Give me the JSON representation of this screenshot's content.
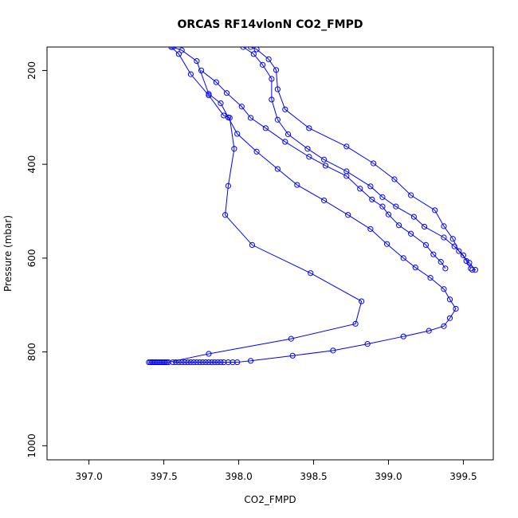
{
  "chart_data": {
    "type": "scatter",
    "title": "ORCAS RF14vlonN CO2_FMPD",
    "xlabel": "CO2_FMPD",
    "ylabel": "Pressure (mbar)",
    "xlim": [
      396.72,
      399.7
    ],
    "ylim": [
      1030,
      150
    ],
    "y_reversed": true,
    "x_ticks": [
      397.0,
      397.5,
      398.0,
      398.5,
      399.0,
      399.5
    ],
    "x_tick_labels": [
      "397.0",
      "397.5",
      "398.0",
      "398.5",
      "399.0",
      "399.5"
    ],
    "y_ticks": [
      200,
      400,
      600,
      800,
      1000
    ],
    "y_tick_labels": [
      "200",
      "400",
      "600",
      "800",
      "1000"
    ],
    "grid": false,
    "legend": "none",
    "marker": "open-circle",
    "connected": true,
    "color": "#0000ff",
    "series": [
      {
        "values": [
          [
            397.4,
            822
          ],
          [
            397.41,
            822
          ],
          [
            397.42,
            822
          ],
          [
            397.43,
            822
          ],
          [
            397.44,
            822
          ],
          [
            397.45,
            822
          ],
          [
            397.46,
            822
          ],
          [
            397.47,
            822
          ],
          [
            397.48,
            822
          ],
          [
            397.49,
            822
          ],
          [
            397.5,
            822
          ],
          [
            397.51,
            822
          ],
          [
            397.52,
            822
          ],
          [
            397.53,
            822
          ],
          [
            397.8,
            804
          ],
          [
            398.35,
            772
          ],
          [
            398.78,
            740
          ],
          [
            398.82,
            692
          ],
          [
            398.48,
            632
          ],
          [
            398.09,
            572
          ],
          [
            397.91,
            508
          ],
          [
            397.93,
            446
          ],
          [
            397.97,
            367
          ],
          [
            397.94,
            301
          ],
          [
            397.9,
            296
          ],
          [
            397.8,
            253
          ],
          [
            397.68,
            208
          ],
          [
            397.6,
            165
          ],
          [
            397.55,
            150
          ]
        ]
      },
      {
        "values": [
          [
            397.56,
            822
          ],
          [
            397.58,
            822
          ],
          [
            397.6,
            822
          ],
          [
            397.62,
            822
          ],
          [
            397.64,
            822
          ],
          [
            397.66,
            822
          ],
          [
            397.68,
            822
          ],
          [
            397.7,
            822
          ],
          [
            397.72,
            822
          ],
          [
            397.74,
            822
          ],
          [
            397.76,
            822
          ],
          [
            397.78,
            822
          ],
          [
            397.8,
            822
          ],
          [
            397.82,
            822
          ],
          [
            397.84,
            822
          ],
          [
            397.86,
            822
          ],
          [
            397.88,
            822
          ],
          [
            397.9,
            822
          ],
          [
            397.93,
            822
          ],
          [
            397.96,
            822
          ],
          [
            397.99,
            822
          ],
          [
            398.08,
            819
          ],
          [
            398.36,
            808
          ],
          [
            398.63,
            797
          ],
          [
            398.86,
            783
          ],
          [
            399.1,
            767
          ],
          [
            399.27,
            755
          ],
          [
            399.37,
            745
          ],
          [
            399.41,
            728
          ],
          [
            399.45,
            708
          ],
          [
            399.41,
            688
          ],
          [
            399.37,
            666
          ],
          [
            399.28,
            642
          ],
          [
            399.18,
            620
          ],
          [
            399.1,
            600
          ],
          [
            398.99,
            570
          ],
          [
            398.88,
            538
          ],
          [
            398.73,
            508
          ],
          [
            398.57,
            477
          ],
          [
            398.39,
            444
          ],
          [
            398.26,
            410
          ],
          [
            398.12,
            373
          ],
          [
            397.99,
            335
          ],
          [
            397.93,
            300
          ],
          [
            397.88,
            270
          ],
          [
            397.8,
            250
          ],
          [
            397.72,
            180
          ],
          [
            397.62,
            157
          ],
          [
            397.56,
            150
          ]
        ]
      },
      {
        "values": [
          [
            399.56,
            625
          ],
          [
            399.58,
            625
          ],
          [
            399.54,
            610
          ],
          [
            399.47,
            585
          ],
          [
            399.43,
            559
          ],
          [
            399.37,
            532
          ],
          [
            399.31,
            498
          ],
          [
            399.15,
            466
          ],
          [
            399.04,
            432
          ],
          [
            398.9,
            398
          ],
          [
            398.72,
            362
          ],
          [
            398.47,
            323
          ],
          [
            398.31,
            283
          ],
          [
            398.26,
            240
          ],
          [
            398.25,
            199
          ],
          [
            398.2,
            176
          ],
          [
            398.12,
            155
          ],
          [
            398.08,
            150
          ]
        ]
      },
      {
        "values": [
          [
            399.55,
            622
          ],
          [
            399.52,
            606
          ],
          [
            399.5,
            594
          ],
          [
            399.44,
            575
          ],
          [
            399.37,
            556
          ],
          [
            399.24,
            533
          ],
          [
            399.17,
            512
          ],
          [
            399.05,
            490
          ],
          [
            398.96,
            470
          ],
          [
            398.88,
            447
          ],
          [
            398.72,
            415
          ],
          [
            398.57,
            390
          ],
          [
            398.46,
            367
          ],
          [
            398.33,
            336
          ],
          [
            398.26,
            305
          ],
          [
            398.22,
            262
          ],
          [
            398.22,
            218
          ],
          [
            398.16,
            188
          ],
          [
            398.1,
            165
          ],
          [
            398.03,
            150
          ]
        ]
      },
      {
        "values": [
          [
            399.38,
            622
          ],
          [
            399.35,
            608
          ],
          [
            399.3,
            592
          ],
          [
            399.25,
            572
          ],
          [
            399.15,
            548
          ],
          [
            399.07,
            530
          ],
          [
            399.0,
            507
          ],
          [
            398.96,
            490
          ],
          [
            398.89,
            475
          ],
          [
            398.81,
            452
          ],
          [
            398.72,
            425
          ],
          [
            398.58,
            403
          ],
          [
            398.47,
            384
          ],
          [
            398.31,
            352
          ],
          [
            398.18,
            323
          ],
          [
            398.08,
            301
          ],
          [
            398.02,
            277
          ],
          [
            397.92,
            248
          ],
          [
            397.85,
            225
          ],
          [
            397.75,
            200
          ]
        ]
      }
    ]
  }
}
